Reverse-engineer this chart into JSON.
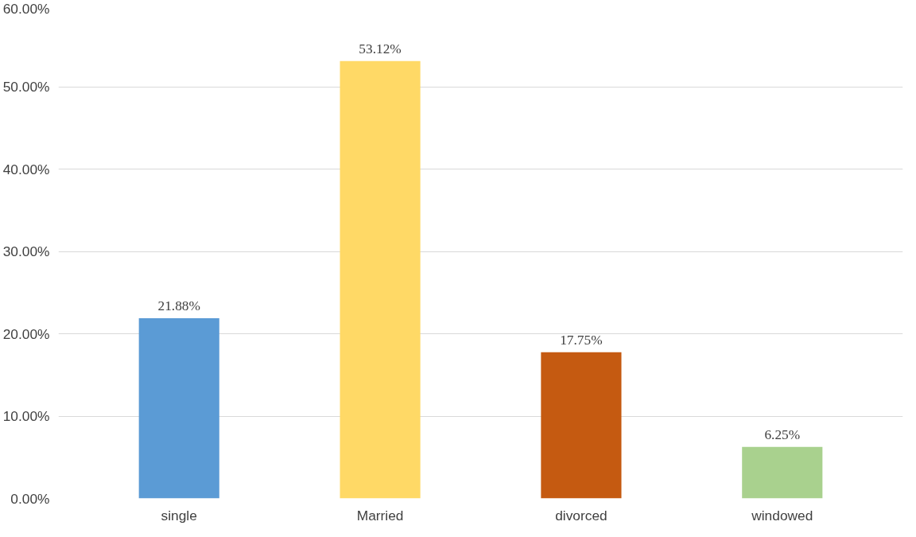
{
  "chart_data": {
    "type": "bar",
    "categories": [
      "single",
      "Married",
      "divorced",
      "windowed"
    ],
    "values": [
      21.88,
      53.12,
      17.75,
      6.25
    ],
    "colors": [
      "#5b9bd5",
      "#ffd966",
      "#c55a11",
      "#a9d18e"
    ],
    "value_labels": [
      "21.88%",
      "53.12%",
      "17.75%",
      "6.25%"
    ],
    "ylim": [
      0,
      60
    ],
    "yticks": [
      {
        "value": 0,
        "label": "0.00%"
      },
      {
        "value": 10,
        "label": "10.00%"
      },
      {
        "value": 20,
        "label": "20.00%"
      },
      {
        "value": 30,
        "label": "30.00%"
      },
      {
        "value": 40,
        "label": "40.00%"
      },
      {
        "value": 50,
        "label": "50.00%"
      },
      {
        "value": 60,
        "label": "60.00%"
      }
    ],
    "grid": "y"
  }
}
